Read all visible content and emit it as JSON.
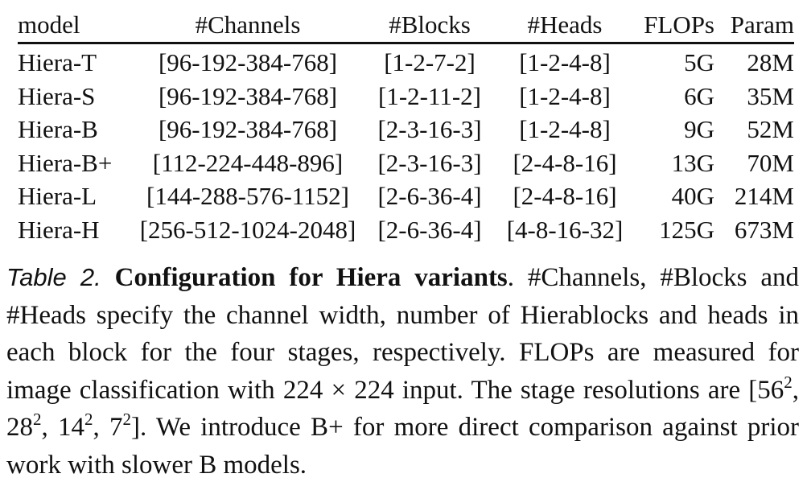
{
  "table": {
    "headers": {
      "model": "model",
      "channels": "#Channels",
      "blocks": "#Blocks",
      "heads": "#Heads",
      "flops": "FLOPs",
      "param": "Param"
    },
    "rows": [
      {
        "model": "Hiera-T",
        "channels": "[96-192-384-768]",
        "blocks": "[1-2-7-2]",
        "heads": "[1-2-4-8]",
        "flops": "5G",
        "param": "28M"
      },
      {
        "model": "Hiera-S",
        "channels": "[96-192-384-768]",
        "blocks": "[1-2-11-2]",
        "heads": "[1-2-4-8]",
        "flops": "6G",
        "param": "35M"
      },
      {
        "model": "Hiera-B",
        "channels": "[96-192-384-768]",
        "blocks": "[2-3-16-3]",
        "heads": "[1-2-4-8]",
        "flops": "9G",
        "param": "52M"
      },
      {
        "model": "Hiera-B+",
        "channels": "[112-224-448-896]",
        "blocks": "[2-3-16-3]",
        "heads": "[2-4-8-16]",
        "flops": "13G",
        "param": "70M"
      },
      {
        "model": "Hiera-L",
        "channels": "[144-288-576-1152]",
        "blocks": "[2-6-36-4]",
        "heads": "[2-4-8-16]",
        "flops": "40G",
        "param": "214M"
      },
      {
        "model": "Hiera-H",
        "channels": "[256-512-1024-2048]",
        "blocks": "[2-6-36-4]",
        "heads": "[4-8-16-32]",
        "flops": "125G",
        "param": "673M"
      }
    ]
  },
  "caption": {
    "label": "Table 2.",
    "title": "Configuration for Hiera variants",
    "text_1": ". #Channels, #Blocks and #Heads specify the channel width, number of Hierablocks and heads in each block for the four stages, respectively. FLOPs are measured for image classification with 224 × 224 input. The stage resolutions are [56",
    "res_1_exp": "2",
    "res_2": ", 28",
    "res_2_exp": "2",
    "res_3": ", 14",
    "res_3_exp": "2",
    "res_4": ", 7",
    "res_4_exp": "2",
    "text_2": "].  We introduce B+ for more direct comparison against prior work with slower B models."
  }
}
